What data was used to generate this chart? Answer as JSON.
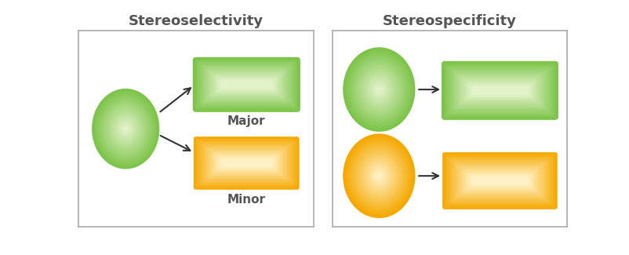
{
  "title_left": "Stereoselectivity",
  "title_right": "Stereospecificity",
  "title_fontsize": 13,
  "label_major": "Major",
  "label_minor": "Minor",
  "green_outer": "#7dc44a",
  "green_inner": "#e8f5d0",
  "green_edge": "#7dc44a",
  "orange_outer": "#f5a800",
  "orange_inner": "#fff5d0",
  "orange_edge": "#f5a800",
  "panel_bg": "#ffffff",
  "fig_bg": "#ffffff",
  "text_color": "#555555",
  "arrow_color": "#333333",
  "spine_color": "#aaaaaa"
}
